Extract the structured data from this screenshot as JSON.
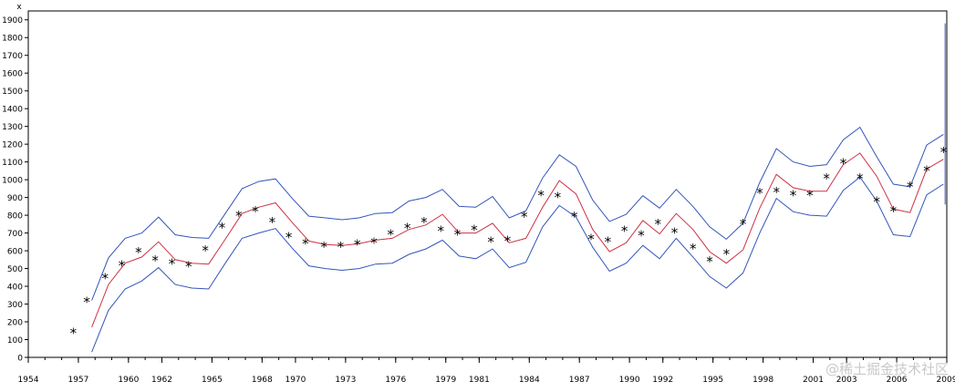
{
  "chart_data": {
    "type": "line",
    "ylabel": "x",
    "xlim": [
      1954,
      2009
    ],
    "ylim": [
      0,
      1950
    ],
    "x_ticks": [
      1954,
      1957,
      1960,
      1962,
      1965,
      1968,
      1970,
      1973,
      1976,
      1979,
      1981,
      1984,
      1987,
      1990,
      1992,
      1995,
      1998,
      2001,
      2003,
      2006,
      2009
    ],
    "y_ticks": [
      0,
      100,
      200,
      300,
      400,
      500,
      600,
      700,
      800,
      900,
      1000,
      1100,
      1200,
      1300,
      1400,
      1500,
      1600,
      1700,
      1800,
      1900
    ],
    "observed": {
      "marker": "*",
      "color": "#000000",
      "x": [
        1956.7,
        1957.5,
        1958.6,
        1959.6,
        1960.6,
        1961.6,
        1962.6,
        1963.6,
        1964.6,
        1965.6,
        1966.6,
        1967.6,
        1968.6,
        1969.6,
        1970.6,
        1971.7,
        1972.7,
        1973.7,
        1974.7,
        1975.7,
        1976.7,
        1977.7,
        1978.7,
        1979.7,
        1980.7,
        1981.7,
        1982.7,
        1983.7,
        1984.7,
        1985.7,
        1986.7,
        1987.7,
        1988.7,
        1989.7,
        1990.7,
        1991.7,
        1992.7,
        1993.8,
        1994.8,
        1995.8,
        1996.8,
        1997.8,
        1998.8,
        1999.8,
        2000.8,
        2001.8,
        2002.8,
        2003.8,
        2004.8,
        2005.8,
        2006.8,
        2007.8,
        2008.8
      ],
      "y": [
        140,
        315,
        450,
        520,
        595,
        550,
        530,
        515,
        605,
        735,
        800,
        825,
        765,
        680,
        645,
        625,
        625,
        640,
        650,
        695,
        730,
        765,
        715,
        695,
        720,
        655,
        660,
        795,
        915,
        905,
        795,
        670,
        655,
        715,
        690,
        755,
        705,
        615,
        545,
        585,
        755,
        930,
        935,
        915,
        915,
        1010,
        1095,
        1010,
        880,
        825,
        965,
        1055,
        1160
      ]
    },
    "series": [
      {
        "role": "forecast",
        "color": "#cc3344",
        "x": [
          1957.8,
          1958.8,
          1959.8,
          1960.8,
          1961.8,
          1962.8,
          1963.8,
          1964.8,
          1965.8,
          1966.8,
          1967.8,
          1968.8,
          1969.8,
          1970.8,
          1971.8,
          1972.8,
          1973.8,
          1974.8,
          1975.8,
          1976.8,
          1977.8,
          1978.8,
          1979.8,
          1980.8,
          1981.8,
          1982.8,
          1983.8,
          1984.8,
          1985.8,
          1986.8,
          1987.8,
          1988.8,
          1989.8,
          1990.8,
          1991.8,
          1992.8,
          1993.8,
          1994.8,
          1995.8,
          1996.8,
          1997.8,
          1998.8,
          1999.8,
          2000.8,
          2001.8,
          2002.8,
          2003.8,
          2004.8,
          2005.8,
          2006.8,
          2007.8,
          2008.8
        ],
        "y": [
          170,
          410,
          530,
          565,
          650,
          550,
          530,
          525,
          665,
          810,
          845,
          870,
          760,
          655,
          635,
          630,
          640,
          660,
          670,
          720,
          745,
          805,
          700,
          700,
          755,
          645,
          670,
          845,
          995,
          920,
          720,
          595,
          645,
          770,
          695,
          810,
          720,
          595,
          530,
          605,
          840,
          1030,
          955,
          935,
          935,
          1085,
          1150,
          1020,
          835,
          815,
          1060,
          1115
        ]
      },
      {
        "role": "upper",
        "color": "#3355bb",
        "x": [
          1957.8,
          1958.8,
          1959.8,
          1960.8,
          1961.8,
          1962.8,
          1963.8,
          1964.8,
          1965.8,
          1966.8,
          1967.8,
          1968.8,
          1969.8,
          1970.8,
          1971.8,
          1972.8,
          1973.8,
          1974.8,
          1975.8,
          1976.8,
          1977.8,
          1978.8,
          1979.8,
          1980.8,
          1981.8,
          1982.8,
          1983.8,
          1984.8,
          1985.8,
          1986.8,
          1987.8,
          1988.8,
          1989.8,
          1990.8,
          1991.8,
          1992.8,
          1993.8,
          1994.8,
          1995.8,
          1996.8,
          1997.8,
          1998.8,
          1999.8,
          2000.8,
          2001.8,
          2002.8,
          2003.8,
          2004.8,
          2005.8,
          2006.8,
          2007.8,
          2008.8
        ],
        "y": [
          320,
          560,
          670,
          700,
          790,
          690,
          675,
          670,
          810,
          950,
          990,
          1005,
          895,
          795,
          785,
          775,
          785,
          810,
          815,
          880,
          900,
          945,
          850,
          845,
          905,
          785,
          825,
          1010,
          1140,
          1075,
          885,
          765,
          805,
          910,
          840,
          945,
          850,
          735,
          665,
          755,
          985,
          1175,
          1100,
          1075,
          1085,
          1225,
          1295,
          1130,
          975,
          960,
          1195,
          1255
        ]
      },
      {
        "role": "lower",
        "color": "#3355bb",
        "x": [
          1957.8,
          1958.8,
          1959.8,
          1960.8,
          1961.8,
          1962.8,
          1963.8,
          1964.8,
          1965.8,
          1966.8,
          1967.8,
          1968.8,
          1969.8,
          1970.8,
          1971.8,
          1972.8,
          1973.8,
          1974.8,
          1975.8,
          1976.8,
          1977.8,
          1978.8,
          1979.8,
          1980.8,
          1981.8,
          1982.8,
          1983.8,
          1984.8,
          1985.8,
          1986.8,
          1987.8,
          1988.8,
          1989.8,
          1990.8,
          1991.8,
          1992.8,
          1993.8,
          1994.8,
          1995.8,
          1996.8,
          1997.8,
          1998.8,
          1999.8,
          2000.8,
          2001.8,
          2002.8,
          2003.8,
          2004.8,
          2005.8,
          2006.8,
          2007.8,
          2008.8
        ],
        "y": [
          30,
          265,
          385,
          430,
          505,
          410,
          390,
          385,
          530,
          670,
          700,
          725,
          615,
          515,
          500,
          490,
          500,
          525,
          530,
          580,
          610,
          660,
          570,
          555,
          610,
          505,
          535,
          735,
          855,
          790,
          620,
          485,
          530,
          630,
          555,
          670,
          565,
          455,
          390,
          475,
          700,
          895,
          820,
          800,
          795,
          940,
          1015,
          880,
          690,
          680,
          915,
          975
        ]
      }
    ],
    "final_bar": {
      "color": "#3355bb",
      "x": 2008.9,
      "y": [
        860,
        1880
      ]
    }
  },
  "watermark": "@稀土掘金技术社区"
}
